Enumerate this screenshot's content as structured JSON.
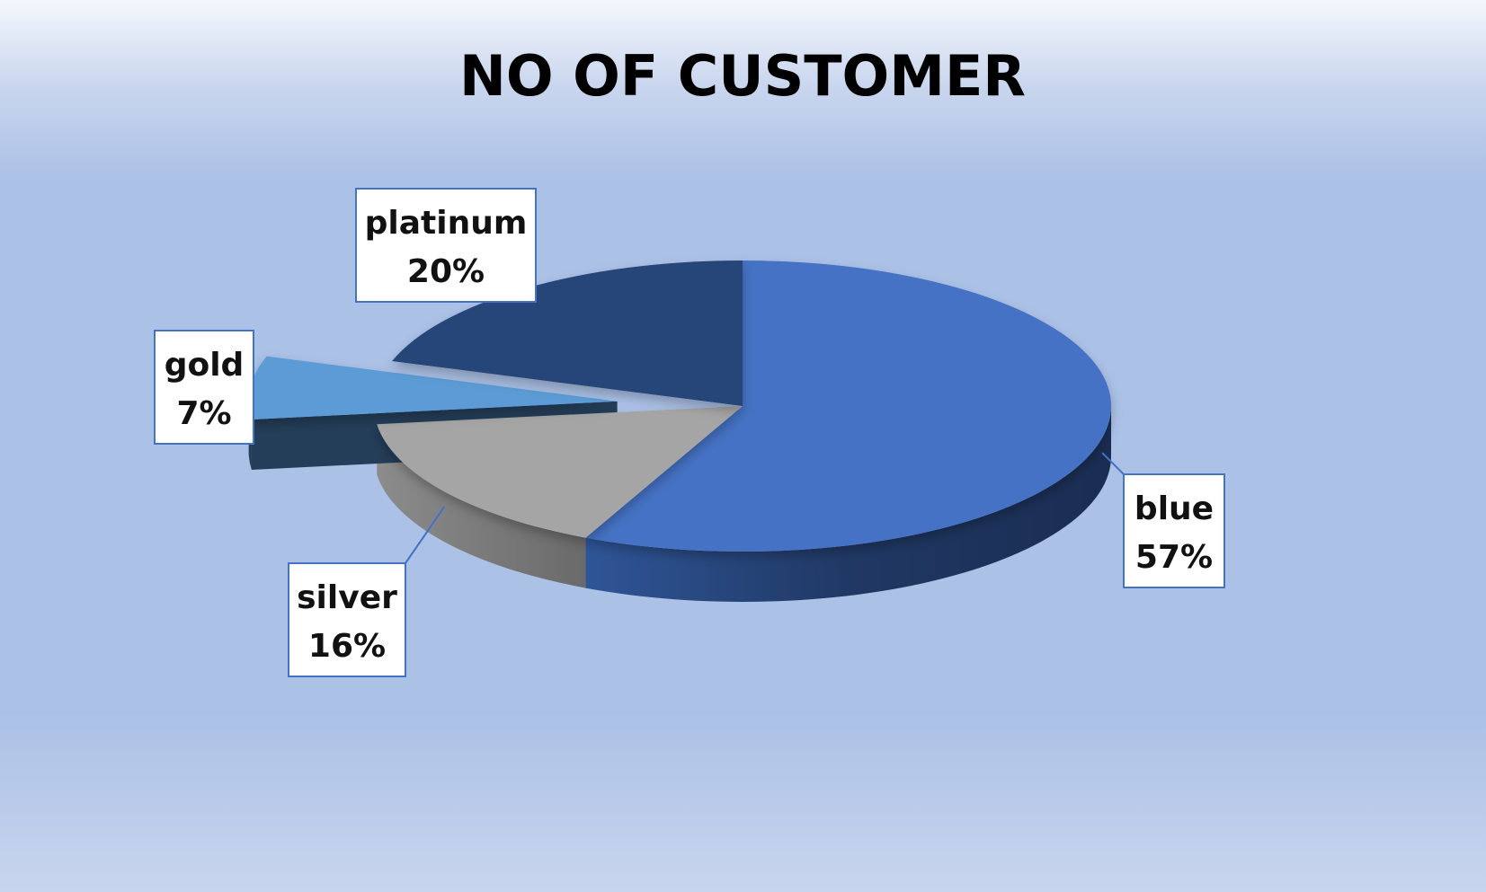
{
  "chart_data": {
    "type": "pie",
    "title": "NO OF CUSTOMER",
    "slices": [
      {
        "name": "blue",
        "value": 57,
        "label": "57%",
        "color": "#4472C4"
      },
      {
        "name": "silver",
        "value": 16,
        "label": "16%",
        "color": "#A5A5A5"
      },
      {
        "name": "gold",
        "value": 7,
        "label": "7%",
        "color": "#5B9BD5",
        "exploded": true
      },
      {
        "name": "platinum",
        "value": 20,
        "label": "20%",
        "color": "#264478"
      }
    ],
    "style": "3d",
    "legend": "none",
    "data_labels": "category and percentage in callouts"
  }
}
